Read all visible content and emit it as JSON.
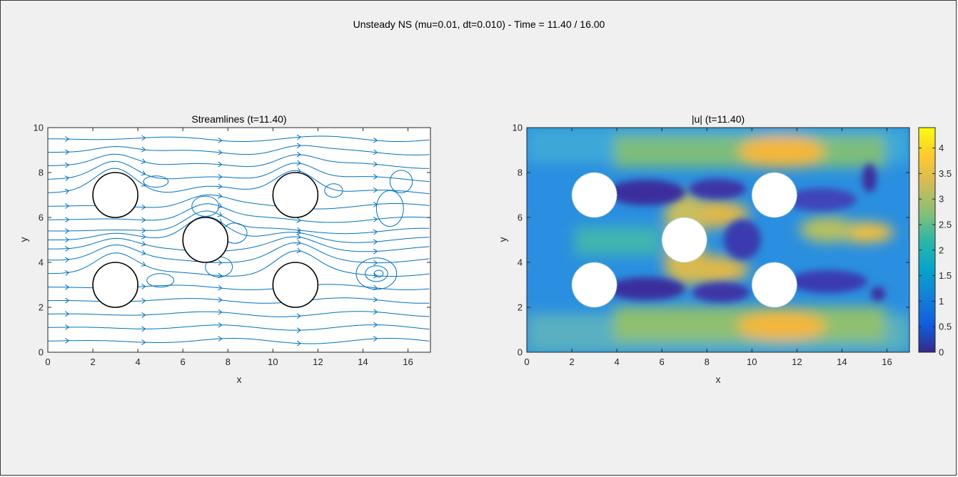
{
  "figure": {
    "title": "Unsteady NS (mu=0.01, dt=0.010) - Time = 11.40 / 16.00"
  },
  "colors": {
    "background": "#f0f0f0",
    "streamline": "#0072bd",
    "cylinder_edge": "#000000",
    "colormap": "parula"
  },
  "chart_data": [
    {
      "type": "streamline",
      "title": "Streamlines (t=11.40)",
      "xlabel": "x",
      "ylabel": "y",
      "xlim": [
        0,
        17
      ],
      "ylim": [
        0,
        10
      ],
      "xticks": [
        "0",
        "2",
        "4",
        "6",
        "8",
        "10",
        "12",
        "14",
        "16"
      ],
      "yticks": [
        "0",
        "2",
        "4",
        "6",
        "8",
        "10"
      ],
      "grid": false,
      "obstacles": [
        {
          "cx": 3,
          "cy": 7,
          "r": 1
        },
        {
          "cx": 3,
          "cy": 3,
          "r": 1
        },
        {
          "cx": 7,
          "cy": 5,
          "r": 1
        },
        {
          "cx": 11,
          "cy": 7,
          "r": 1
        },
        {
          "cx": 11,
          "cy": 3,
          "r": 1
        }
      ],
      "streamline_seed_y": [
        0.5,
        1.1,
        1.7,
        2.3,
        2.9,
        3.5,
        4.1,
        4.6,
        5.0,
        5.4,
        5.9,
        6.5,
        7.1,
        7.7,
        8.3,
        8.9,
        9.5
      ]
    },
    {
      "type": "heatmap",
      "title": "|u| (t=11.40)",
      "xlabel": "x",
      "ylabel": "y",
      "xlim": [
        0,
        17
      ],
      "ylim": [
        0,
        10
      ],
      "xticks": [
        "0",
        "2",
        "4",
        "6",
        "8",
        "10",
        "12",
        "14",
        "16"
      ],
      "yticks": [
        "0",
        "2",
        "4",
        "6",
        "8",
        "10"
      ],
      "colorbar": {
        "min": 0,
        "max": 4.4,
        "ticks": [
          "0",
          "0.5",
          "1",
          "1.5",
          "2",
          "2.5",
          "3",
          "3.5",
          "4"
        ],
        "colormap": "parula"
      },
      "obstacles": [
        {
          "cx": 3,
          "cy": 7,
          "r": 1
        },
        {
          "cx": 3,
          "cy": 3,
          "r": 1
        },
        {
          "cx": 7,
          "cy": 5,
          "r": 1
        },
        {
          "cx": 11,
          "cy": 7,
          "r": 1
        },
        {
          "cx": 11,
          "cy": 3,
          "r": 1
        }
      ]
    }
  ]
}
